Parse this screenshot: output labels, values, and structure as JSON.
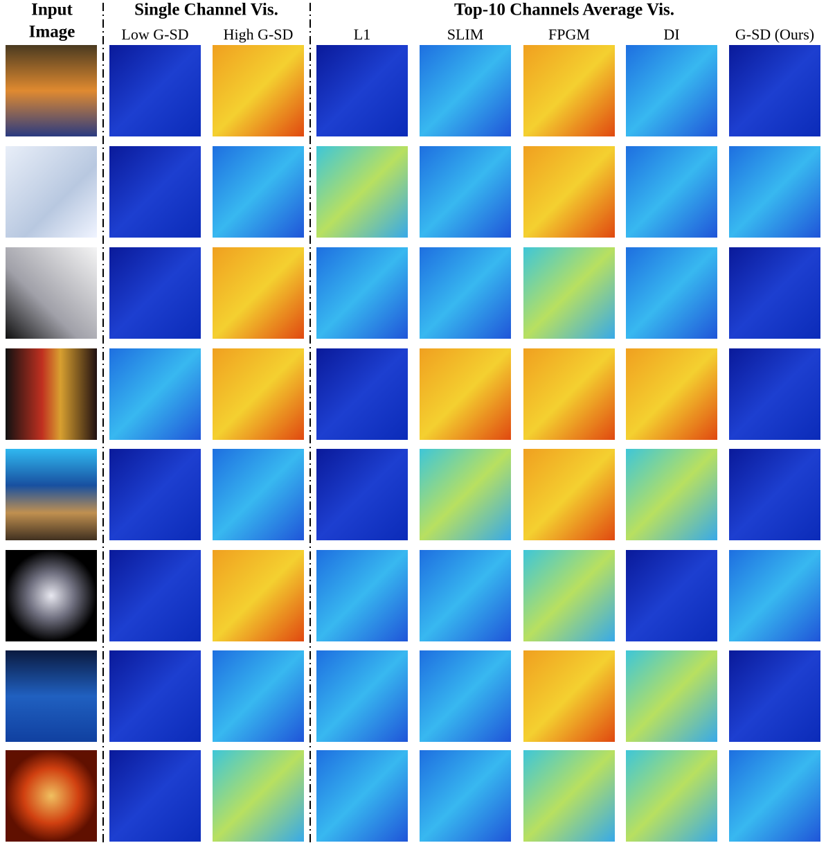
{
  "header": {
    "input_label": [
      "Input",
      "Image"
    ],
    "group_single": "Single Channel Vis.",
    "group_top10": "Top-10 Channels Average Vis."
  },
  "columns": [
    "Low G-SD",
    "High G-SD",
    "L1",
    "SLIM",
    "FPGM",
    "DI",
    "G-SD (Ours)"
  ]
}
